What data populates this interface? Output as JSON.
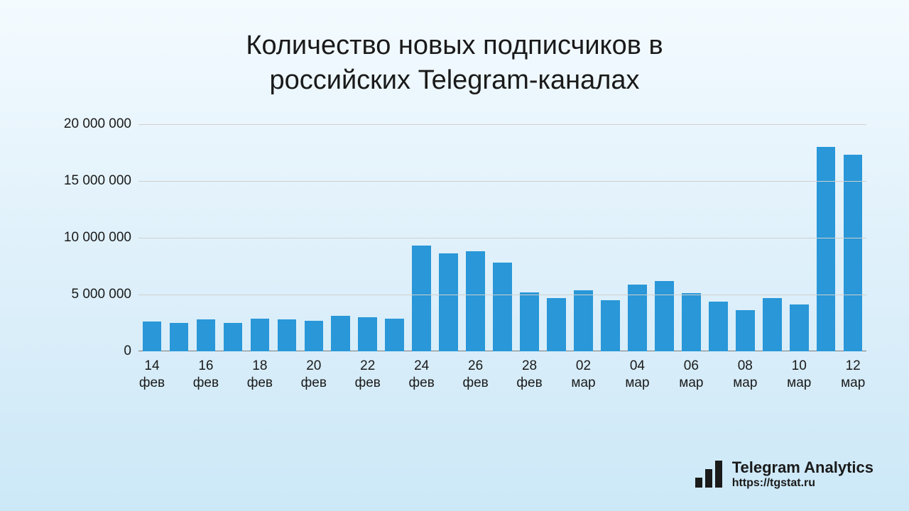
{
  "title_line1": "Количество новых подписчиков в",
  "title_line2": "российских Telegram-каналах",
  "chart": {
    "type": "bar",
    "values": [
      2600000,
      2500000,
      2800000,
      2500000,
      2900000,
      2800000,
      2700000,
      3100000,
      3000000,
      2900000,
      9300000,
      8600000,
      8800000,
      7800000,
      5200000,
      4700000,
      5400000,
      4500000,
      5900000,
      6200000,
      5100000,
      4400000,
      3600000,
      4700000,
      4100000,
      18000000,
      17300000
    ],
    "x_labels_day": [
      "14",
      "",
      "16",
      "",
      "18",
      "",
      "20",
      "",
      "22",
      "",
      "24",
      "",
      "26",
      "",
      "28",
      "",
      "02",
      "",
      "04",
      "",
      "06",
      "",
      "08",
      "",
      "10",
      "",
      "12"
    ],
    "x_labels_month": [
      "фев",
      "",
      "фев",
      "",
      "фев",
      "",
      "фев",
      "",
      "фев",
      "",
      "фев",
      "",
      "фев",
      "",
      "фев",
      "",
      "мар",
      "",
      "мар",
      "",
      "мар",
      "",
      "мар",
      "",
      "мар",
      "",
      "мар"
    ],
    "ylim": [
      0,
      20000000
    ],
    "yticks": [
      0,
      5000000,
      10000000,
      15000000,
      20000000
    ],
    "ytick_labels": [
      "0",
      "5 000 000",
      "10 000 000",
      "15 000 000",
      "20 000 000"
    ],
    "bar_color": "#2997d8",
    "grid_color": "#cfcfcf",
    "baseline_color": "#7a7a7a",
    "background": "linear-gradient(180deg,#f4fbff 0%,#e3f2fb 40%,#cce8f7 100%)",
    "title_fontsize": 38,
    "tick_fontsize": 19,
    "bar_width": 0.7
  },
  "attribution": {
    "name": "Telegram Analytics",
    "url": "https://tgstat.ru",
    "logo_bar_heights": [
      14,
      26,
      38
    ]
  }
}
